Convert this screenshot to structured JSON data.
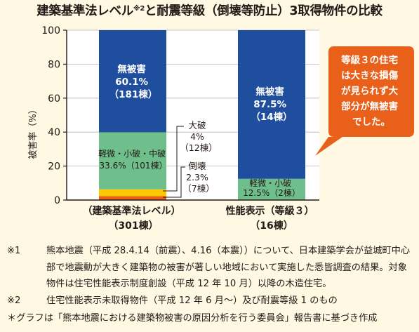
{
  "title": {
    "main_before": "建築基準法レベル",
    "sup": "※2",
    "main_after": "と耐震等級（倒壊等防止）3取得物件の比較"
  },
  "chart_data": {
    "type": "stacked-bar",
    "ylabel": "被害率（%）",
    "ylim": [
      0,
      100
    ],
    "yticks": [
      "0",
      "20",
      "40",
      "60",
      "80",
      "100"
    ],
    "categories": [
      {
        "label": "（建築基準法レベル）",
        "sublabel": "（301棟）"
      },
      {
        "label": "性能表示（等級３）",
        "sublabel": "（16棟）"
      }
    ],
    "series": [
      {
        "name": "倒壊",
        "color": "#e9601a",
        "values": [
          2.3,
          0
        ]
      },
      {
        "name": "大破",
        "color": "#fcc800",
        "values": [
          4,
          0
        ]
      },
      {
        "name": "軽微・小破・中破",
        "color": "#6ebf8b",
        "values": [
          33.6,
          12.5
        ]
      },
      {
        "name": "無被害",
        "color": "#1f4e9f",
        "values": [
          60.1,
          87.5
        ]
      }
    ],
    "bar_labels": {
      "bar1_none": [
        "無被害",
        "60.1%",
        "（181棟）"
      ],
      "bar1_minor": [
        "軽微・小破・中破",
        "33.6%（101棟）"
      ],
      "bar1_major": [
        "大破",
        "4%",
        "（12棟）"
      ],
      "bar1_collapse": [
        "倒壊",
        "2.3%",
        "（7棟）"
      ],
      "bar2_none": [
        "無被害",
        "87.5%",
        "（14棟）"
      ],
      "bar2_minor": [
        "軽微・小破",
        "12.5%（2棟）"
      ]
    },
    "callout": [
      "等級３の住宅",
      "は大きな損傷",
      "が見られず大",
      "部分が無被害",
      "でした。"
    ],
    "grid": true
  },
  "notes": [
    {
      "mark": "※1",
      "text": "熊本地震（平成 28.4.14（前震）、4.16（本震））について、日本建築学会が益城町中心部で地震動が大きく建築物の被害が著しい地域において実施した悉皆調査の結果。対象物件は住宅性能表示制度創設（平成 12 年 10 月）以降の木造住宅。"
    },
    {
      "mark": "※2",
      "text": "住宅性能表示未取得物件（平成 12 年 6 月～）及び耐震等級 1 のもの"
    }
  ],
  "footer": {
    "mark": "＊",
    "text": "グラフは「熊本地震における建築物被害の原因分析を行う委員会」報告書に基づき作成"
  },
  "colors": {
    "background": "#fff8e3",
    "plot_bg": "#ffffff",
    "callout": "#e9601a",
    "axis": "#231815"
  }
}
